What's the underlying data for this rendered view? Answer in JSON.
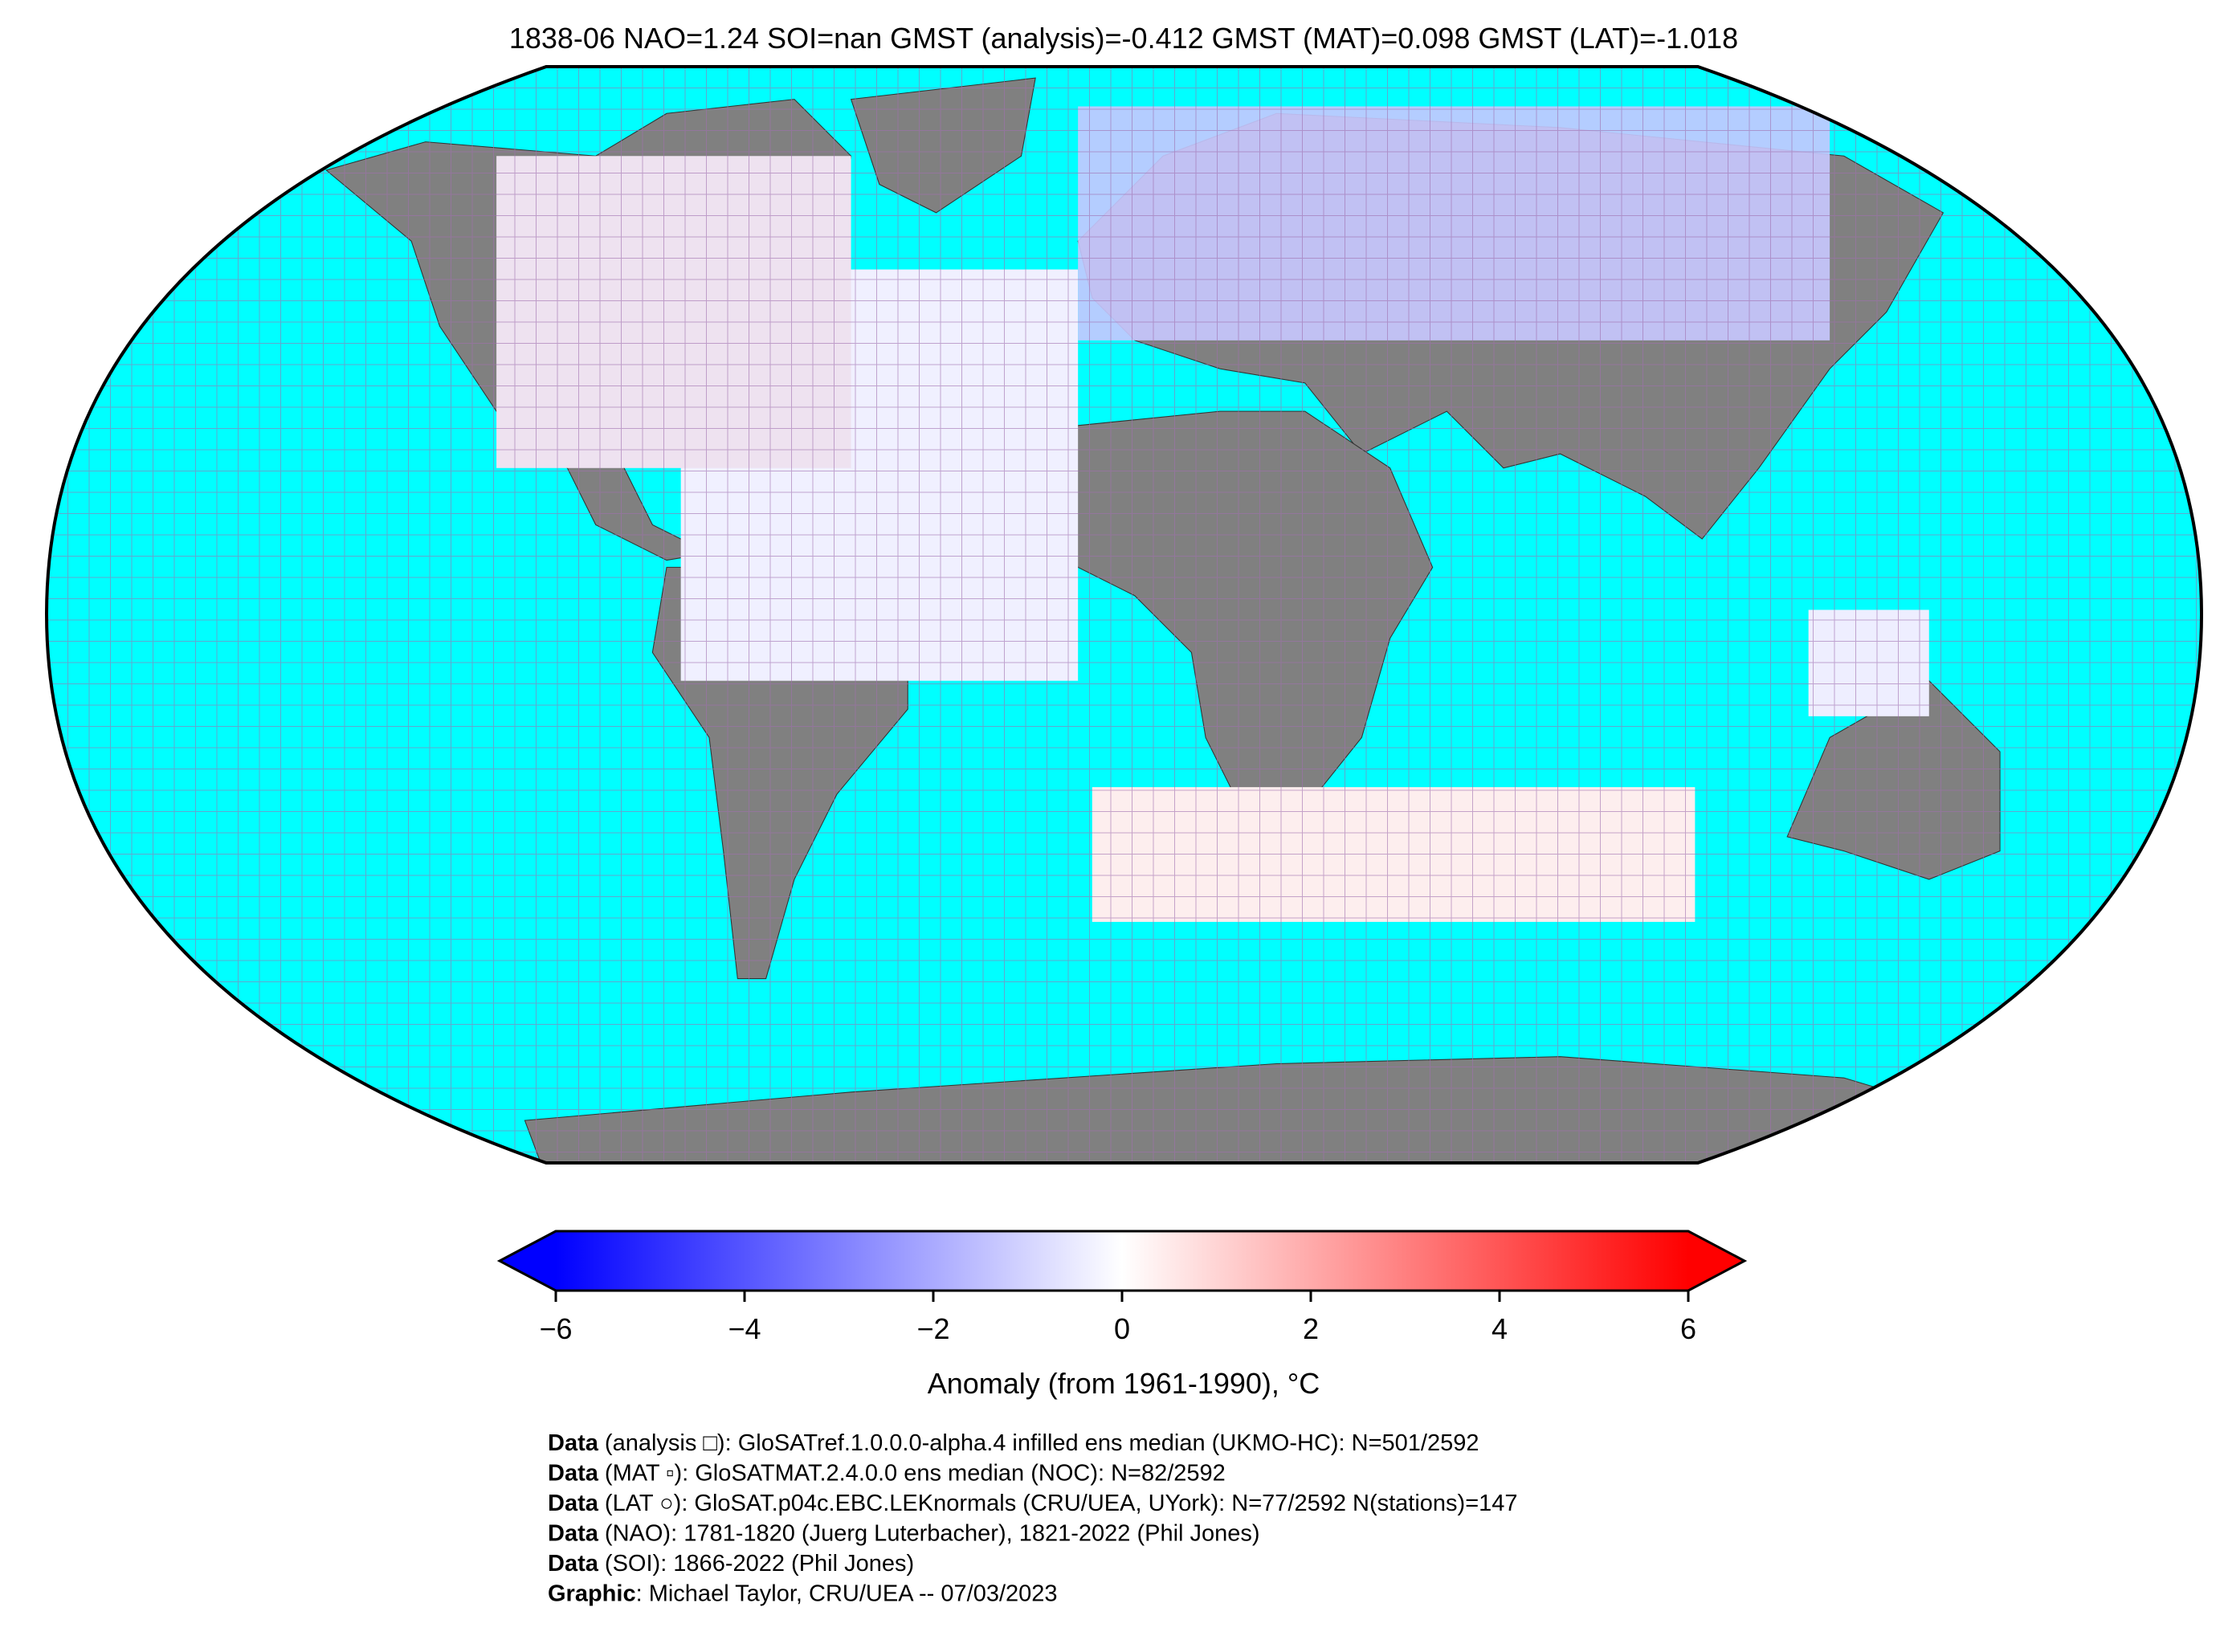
{
  "title": "1838-06 NAO=1.24 SOI=nan GMST (analysis)=-0.412 GMST (MAT)=0.098 GMST (LAT)=-1.018",
  "colorbar": {
    "label": "Anomaly (from 1961-1990), °C",
    "lim": [
      -6,
      6
    ],
    "ticks": [
      {
        "value": -6,
        "label": "−6"
      },
      {
        "value": -4,
        "label": "−4"
      },
      {
        "value": -2,
        "label": "−2"
      },
      0,
      2,
      4,
      6
    ],
    "colors": [
      "#0000ff",
      "#ffffff",
      "#ff0000"
    ],
    "extend": "both"
  },
  "credits": [
    {
      "label": "Data",
      "text": " (analysis □): GloSATref.1.0.0.0-alpha.4 infilled ens median (UKMO-HC): N=501/2592"
    },
    {
      "label": "Data",
      "text": " (MAT ▫): GloSATMAT.2.4.0.0 ens median (NOC): N=82/2592"
    },
    {
      "label": "Data",
      "text": " (LAT ○): GloSAT.p04c.EBC.LEKnormals (CRU/UEA, UYork): N=77/2592 N(stations)=147"
    },
    {
      "label": "Data",
      "text": " (NAO): 1781-1820 (Juerg Luterbacher), 1821-2022 (Phil Jones)"
    },
    {
      "label": "Data",
      "text": " (SOI): 1866-2022 (Phil Jones)"
    },
    {
      "label": "Graphic",
      "text": ": Michael Taylor, CRU/UEA -- 07/03/2023"
    }
  ]
}
